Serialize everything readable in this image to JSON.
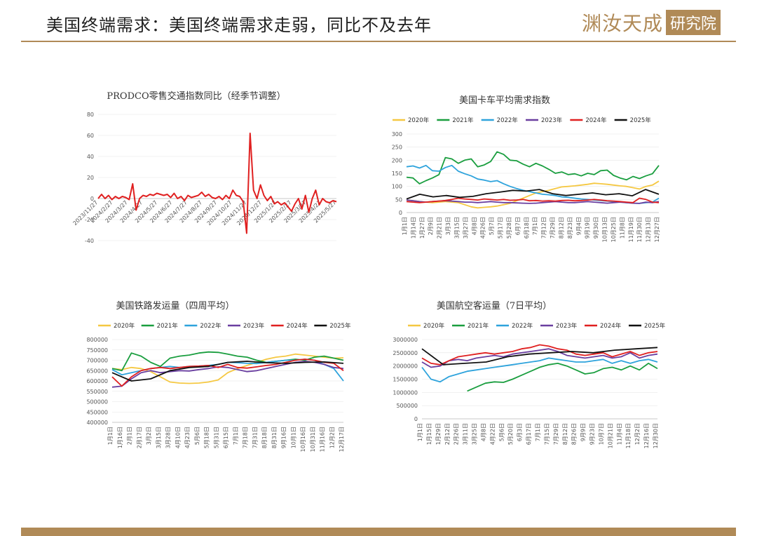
{
  "slide": {
    "title": "美国终端需求：美国终端需求走弱，同比不及去年",
    "logo_text": "渊汝天成",
    "logo_box": "研究院",
    "accent_color": "#b08a57"
  },
  "chart_data": [
    {
      "id": "c1",
      "type": "line",
      "title": "PRODCO零售交通指数同比（经季节调整）",
      "ylim": [
        -40,
        80
      ],
      "yticks": [
        80,
        60,
        40,
        20,
        0,
        -20,
        -40
      ],
      "x_labels": [
        "2023/11/27",
        "2024/2/27",
        "2024/3/27",
        "2024/4/27",
        "2024/5/27",
        "2024/6/27",
        "2024/7/27",
        "2024/8/27",
        "2024/9/27",
        "2024/10/27",
        "2024/11/27",
        "2024/12/27",
        "2025/1/27",
        "2025/2/27",
        "2025/3/27",
        "2025/4/27",
        "2025/5/27"
      ],
      "legend": false,
      "series": [
        {
          "color": "#e02020",
          "values": [
            0,
            4,
            0,
            3,
            -1,
            2,
            0,
            2,
            1,
            -1,
            14,
            -11,
            0,
            3,
            2,
            4,
            3,
            5,
            4,
            3,
            4,
            1,
            5,
            0,
            2,
            -2,
            3,
            1,
            2,
            3,
            6,
            2,
            4,
            1,
            0,
            2,
            -1,
            3,
            0,
            8,
            3,
            2,
            -3,
            -33,
            62,
            8,
            0,
            13,
            3,
            -2,
            2,
            -5,
            -3,
            -6,
            -4,
            -8,
            -12,
            -5,
            0,
            -10,
            3,
            -13,
            0,
            8,
            -6,
            0,
            -3,
            -4,
            -2,
            -3
          ]
        }
      ]
    },
    {
      "id": "c2",
      "type": "line",
      "title": "美国卡车平均需求指数",
      "ylim": [
        0,
        300
      ],
      "yticks": [
        300,
        250,
        200,
        150,
        100,
        50,
        0
      ],
      "x_labels": [
        "1月1日",
        "1月14日",
        "1月27日",
        "2月9日",
        "2月21日",
        "3月3日",
        "3月15日",
        "3月27日",
        "4月8日",
        "4月26日",
        "5月7日",
        "5月17日",
        "5月28日",
        "6月7日",
        "6月18日",
        "7月1日",
        "7月12日",
        "7月29日",
        "8月12日",
        "8月23日",
        "9月4日",
        "9月19日",
        "9月30日",
        "10月13日",
        "10月25日",
        "11月8日",
        "11月19日",
        "11月30日",
        "12月13日",
        "12月27日"
      ],
      "legend": true,
      "series": [
        {
          "name": "2020年",
          "color": "#f5c842",
          "values": [
            48,
            45,
            42,
            40,
            38,
            40,
            42,
            40,
            38,
            30,
            22,
            18,
            20,
            22,
            25,
            30,
            35,
            45,
            55,
            65,
            75,
            80,
            85,
            92,
            98,
            100,
            102,
            105,
            108,
            112,
            110,
            108,
            105,
            102,
            100,
            95,
            90,
            100,
            105,
            120
          ]
        },
        {
          "name": "2021年",
          "color": "#1a9e3f",
          "values": [
            135,
            132,
            110,
            122,
            132,
            145,
            210,
            205,
            188,
            200,
            205,
            175,
            182,
            195,
            232,
            222,
            200,
            198,
            185,
            175,
            188,
            178,
            165,
            150,
            155,
            145,
            148,
            140,
            150,
            145,
            160,
            162,
            142,
            132,
            125,
            138,
            130,
            140,
            148,
            180
          ]
        },
        {
          "name": "2022年",
          "color": "#2ea3dc",
          "values": [
            175,
            178,
            170,
            180,
            160,
            158,
            172,
            180,
            158,
            148,
            140,
            128,
            124,
            118,
            122,
            110,
            100,
            92,
            85,
            80,
            75,
            70,
            68,
            65,
            60,
            58,
            55,
            52,
            50,
            48,
            46,
            44,
            42,
            40,
            38,
            36,
            35,
            38,
            40,
            55
          ]
        },
        {
          "name": "2023年",
          "color": "#6a3fa0",
          "values": [
            48,
            45,
            42,
            40,
            42,
            44,
            45,
            44,
            42,
            40,
            40,
            38,
            40,
            42,
            40,
            38,
            38,
            37,
            36,
            35,
            36,
            38,
            40,
            42,
            40,
            38,
            38,
            40,
            42,
            40,
            38,
            36,
            38,
            40,
            38,
            36,
            35,
            40,
            38,
            42
          ]
        },
        {
          "name": "2024年",
          "color": "#e02020",
          "values": [
            42,
            40,
            38,
            40,
            42,
            44,
            46,
            50,
            55,
            52,
            50,
            48,
            52,
            50,
            48,
            50,
            47,
            48,
            50,
            45,
            46,
            44,
            45,
            44,
            46,
            47,
            45,
            46,
            48,
            50,
            48,
            45,
            44,
            42,
            40,
            38,
            55,
            50,
            40,
            38
          ]
        },
        {
          "name": "2025年",
          "color": "#111111",
          "values": [
            52,
            70,
            60,
            65,
            58,
            62,
            72,
            78,
            85,
            82,
            88,
            72,
            65,
            70,
            75,
            68,
            72,
            64,
            88,
            70
          ]
        }
      ]
    },
    {
      "id": "c3",
      "type": "line",
      "title": "美国铁路发运量（四周平均）",
      "ylim": [
        400000,
        800000
      ],
      "yticks": [
        800000,
        750000,
        700000,
        650000,
        600000,
        550000,
        500000,
        450000,
        400000
      ],
      "x_labels": [
        "1月1日",
        "1月16日",
        "2月1日",
        "2月17日",
        "3月2日",
        "3月15日",
        "3月28日",
        "4月10日",
        "4月23日",
        "5月6日",
        "5月18日",
        "5月31日",
        "6月15日",
        "7月1日",
        "7月18日",
        "7月31日",
        "8月18日",
        "8月31日",
        "9月16日",
        "10月1日",
        "10月16日",
        "10月31日",
        "11月16日",
        "12月2日",
        "12月17日"
      ],
      "legend": true,
      "series": [
        {
          "name": "2020年",
          "color": "#f5c842",
          "values": [
            660,
            655,
            665,
            660,
            645,
            620,
            595,
            590,
            588,
            590,
            595,
            605,
            640,
            660,
            675,
            690,
            705,
            715,
            720,
            730,
            725,
            720,
            715,
            710,
            712
          ]
        },
        {
          "name": "2021年",
          "color": "#1a9e3f",
          "values": [
            660,
            650,
            735,
            720,
            690,
            670,
            710,
            720,
            725,
            735,
            740,
            738,
            730,
            720,
            715,
            700,
            690,
            695,
            700,
            705,
            700,
            715,
            720,
            710,
            700
          ]
        },
        {
          "name": "2022年",
          "color": "#2ea3dc",
          "values": [
            655,
            630,
            640,
            650,
            660,
            665,
            670,
            665,
            670,
            672,
            675,
            680,
            690,
            688,
            685,
            684,
            690,
            695,
            700,
            700,
            705,
            700,
            680,
            660,
            600
          ]
        },
        {
          "name": "2023年",
          "color": "#6a3fa0",
          "values": [
            570,
            575,
            610,
            640,
            650,
            640,
            645,
            650,
            648,
            655,
            660,
            668,
            665,
            655,
            645,
            650,
            660,
            670,
            680,
            690,
            695,
            690,
            680,
            665,
            660
          ]
        },
        {
          "name": "2024年",
          "color": "#e02020",
          "values": [
            620,
            575,
            620,
            650,
            660,
            665,
            660,
            665,
            670,
            672,
            675,
            665,
            680,
            665,
            662,
            668,
            675,
            680,
            690,
            700,
            705,
            700,
            690,
            685,
            650
          ]
        },
        {
          "name": "2025年",
          "color": "#111111",
          "values": [
            640,
            600,
            610,
            650,
            665,
            670,
            690,
            695,
            688,
            685,
            690,
            692,
            685
          ]
        }
      ]
    },
    {
      "id": "c4",
      "type": "line",
      "title": "美国航空客运量（7日平均）",
      "ylim": [
        0,
        3000000
      ],
      "yticks": [
        3000000,
        2500000,
        2000000,
        1500000,
        1000000,
        500000,
        0
      ],
      "x_labels": [
        "1月1日",
        "1月15日",
        "1月29日",
        "2月12日",
        "2月26日",
        "3月11日",
        "3月25日",
        "4月8日",
        "4月22日",
        "5月6日",
        "5月20日",
        "6月3日",
        "6月17日",
        "7月1日",
        "7月15日",
        "7月29日",
        "8月12日",
        "8月26日",
        "9月9日",
        "9月23日",
        "10月7日",
        "10月21日",
        "11月4日",
        "11月18日",
        "12月2日",
        "12月16日",
        "12月30日"
      ],
      "legend": true,
      "series": [
        {
          "name": "2020年",
          "color": "#f5c842",
          "values": [
            null,
            null,
            null,
            null,
            null,
            null,
            null,
            null,
            null,
            null,
            null,
            null,
            null,
            null,
            null,
            null,
            null,
            null,
            null,
            null,
            null,
            null,
            null,
            null,
            null,
            null,
            null
          ]
        },
        {
          "name": "2021年",
          "color": "#1a9e3f",
          "values": [
            null,
            null,
            null,
            null,
            null,
            1050,
            1200,
            1350,
            1400,
            1380,
            1500,
            1650,
            1800,
            1950,
            2050,
            2100,
            2000,
            1850,
            1700,
            1750,
            1900,
            1950,
            1850,
            2000,
            1850,
            2100,
            1900
          ]
        },
        {
          "name": "2022年",
          "color": "#2ea3dc",
          "values": [
            1950,
            1500,
            1400,
            1600,
            1700,
            1800,
            1850,
            1900,
            1950,
            2000,
            2050,
            2100,
            2150,
            2200,
            2300,
            2250,
            2200,
            2150,
            2150,
            2200,
            2250,
            2100,
            2200,
            2100,
            2200,
            2250,
            2150
          ]
        },
        {
          "name": "2023年",
          "color": "#6a3fa0",
          "values": [
            2150,
            1950,
            2000,
            2200,
            2250,
            2200,
            2300,
            2350,
            2400,
            2350,
            2450,
            2500,
            2550,
            2600,
            2650,
            2550,
            2400,
            2350,
            2300,
            2350,
            2400,
            2300,
            2350,
            2500,
            2300,
            2400,
            2450
          ]
        },
        {
          "name": "2024年",
          "color": "#e02020",
          "values": [
            2300,
            2100,
            2050,
            2200,
            2350,
            2400,
            2450,
            2500,
            2450,
            2500,
            2550,
            2650,
            2700,
            2800,
            2750,
            2650,
            2600,
            2450,
            2400,
            2450,
            2500,
            2350,
            2450,
            2550,
            2400,
            2500,
            2550
          ]
        },
        {
          "name": "2025年",
          "color": "#111111",
          "values": [
            2650,
            2050,
            2100,
            2150,
            2350,
            2450,
            2500,
            2550,
            2500,
            2600,
            2650,
            2700
          ]
        }
      ]
    }
  ]
}
